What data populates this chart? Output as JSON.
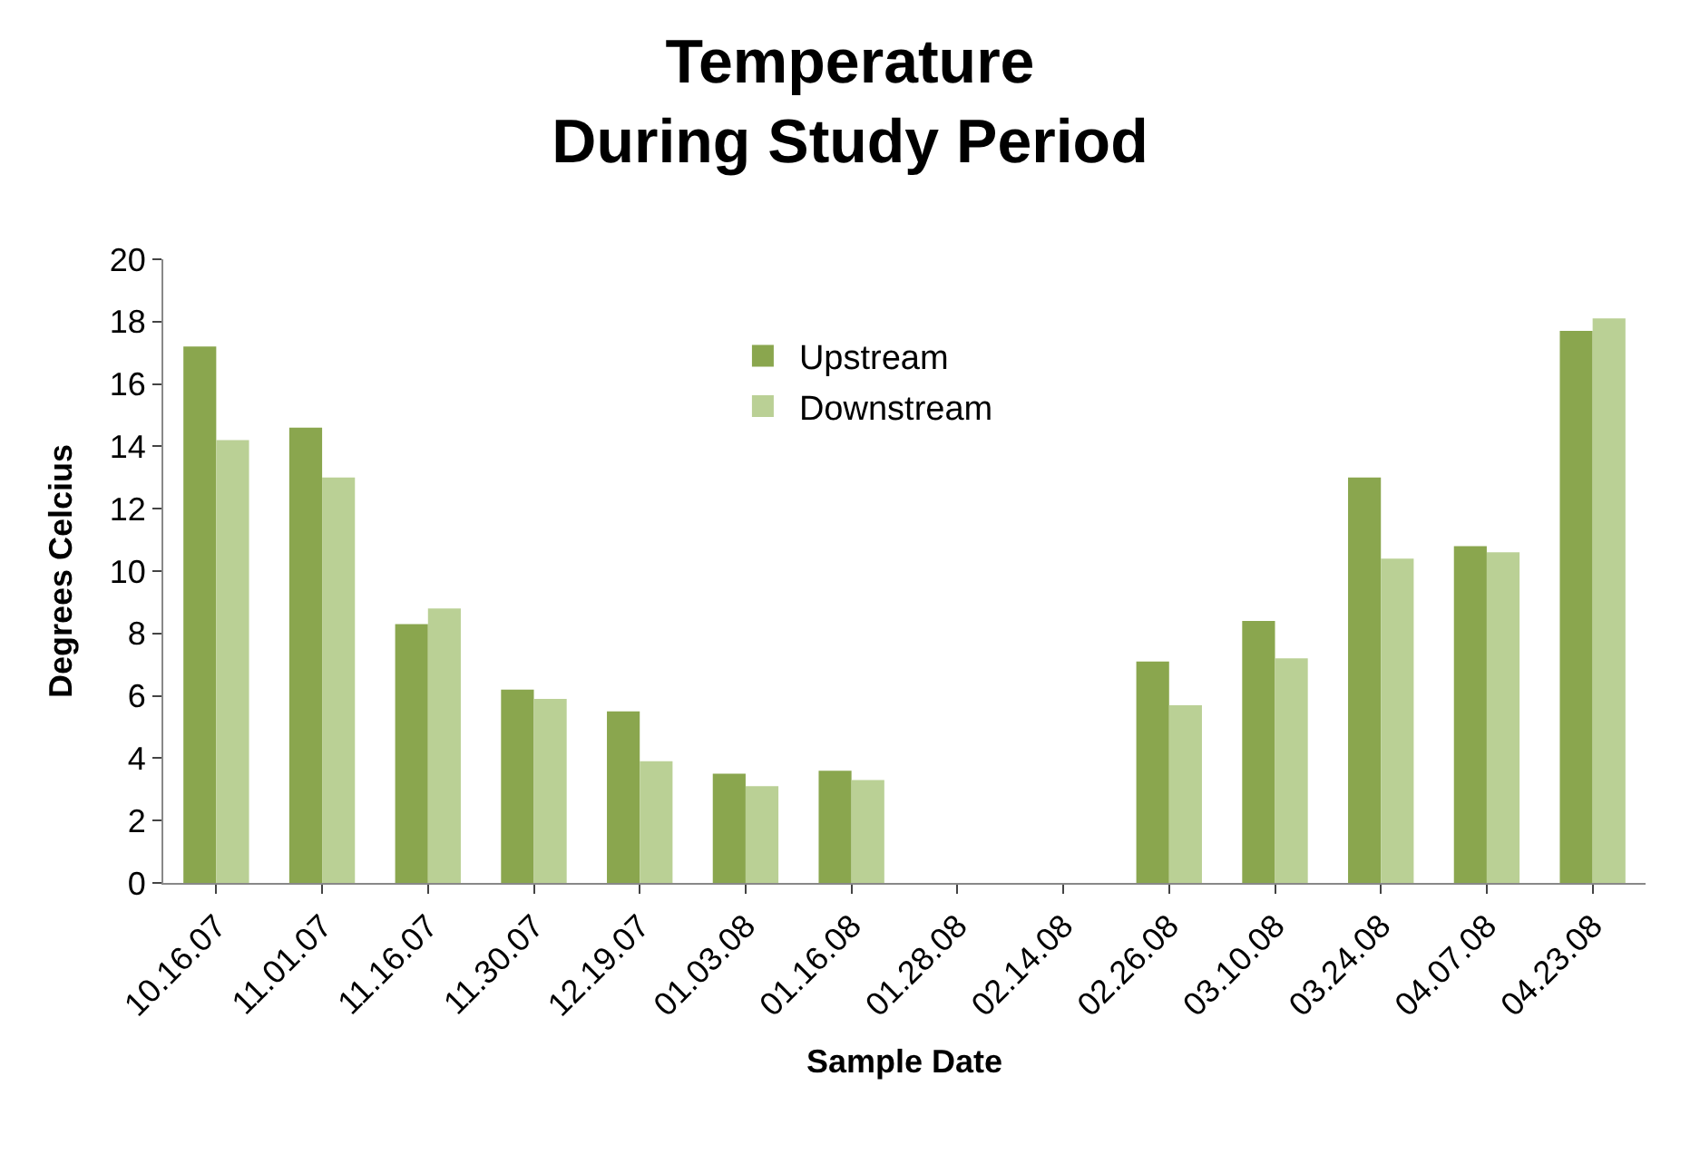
{
  "chart_data": {
    "type": "bar",
    "title": "Temperature\nDuring Study Period",
    "xlabel": "Sample Date",
    "ylabel": "Degrees Celcius",
    "categories": [
      "10.16.07",
      "11.01.07",
      "11.16.07",
      "11.30.07",
      "12.19.07",
      "01.03.08",
      "01.16.08",
      "01.28.08",
      "02.14.08",
      "02.26.08",
      "03.10.08",
      "03.24.08",
      "04.07.08",
      "04.23.08"
    ],
    "series": [
      {
        "name": "Upstream",
        "color": "#8aa64e",
        "values": [
          17.2,
          14.6,
          8.3,
          6.2,
          5.5,
          3.5,
          3.6,
          null,
          null,
          7.1,
          8.4,
          13.0,
          10.8,
          17.7
        ]
      },
      {
        "name": "Downstream",
        "color": "#bad095",
        "values": [
          14.2,
          13.0,
          8.8,
          5.9,
          3.9,
          3.1,
          3.3,
          null,
          null,
          5.7,
          7.2,
          10.4,
          10.6,
          18.1
        ]
      }
    ],
    "ylim": [
      0,
      20
    ],
    "yticks": [
      0,
      2,
      4,
      6,
      8,
      10,
      12,
      14,
      16,
      18,
      20
    ],
    "grid": false,
    "legend": "top"
  }
}
